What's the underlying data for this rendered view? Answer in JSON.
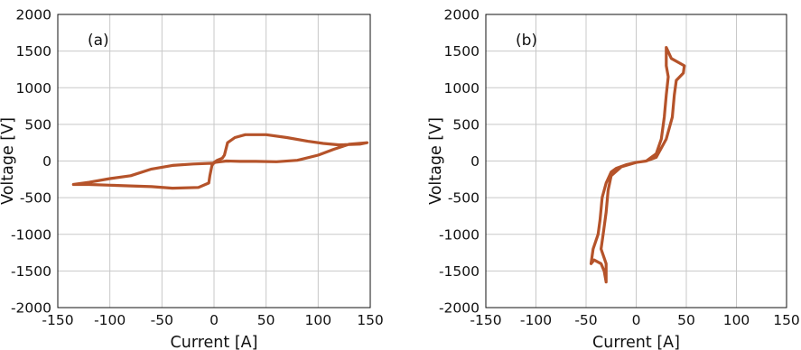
{
  "chart_data": [
    {
      "type": "line",
      "panel_label": "(a)",
      "xlabel": "Current [A]",
      "ylabel": "Voltage [V]",
      "xlim": [
        -150,
        150
      ],
      "ylim": [
        -2000,
        2000
      ],
      "xticks": [
        -150,
        -100,
        -50,
        0,
        50,
        100,
        150
      ],
      "yticks": [
        -2000,
        -1500,
        -1000,
        -500,
        0,
        500,
        1000,
        1500,
        2000
      ],
      "grid": true,
      "line_color": "#b5532a",
      "series": [
        {
          "points": [
            [
              0,
              -20
            ],
            [
              6,
              -10
            ],
            [
              12,
              0
            ],
            [
              25,
              -5
            ],
            [
              40,
              -5
            ],
            [
              60,
              -10
            ],
            [
              80,
              10
            ],
            [
              100,
              80
            ],
            [
              115,
              160
            ],
            [
              130,
              230
            ],
            [
              147,
              250
            ],
            [
              140,
              230
            ],
            [
              120,
              220
            ],
            [
              105,
              240
            ],
            [
              90,
              270
            ],
            [
              70,
              320
            ],
            [
              50,
              360
            ],
            [
              30,
              360
            ],
            [
              20,
              320
            ],
            [
              13,
              250
            ],
            [
              10,
              80
            ],
            [
              8,
              40
            ],
            [
              3,
              10
            ],
            [
              0,
              -20
            ],
            [
              -2,
              -60
            ],
            [
              -4,
              -200
            ],
            [
              -5,
              -300
            ],
            [
              -15,
              -360
            ],
            [
              -40,
              -370
            ],
            [
              -60,
              -350
            ],
            [
              -80,
              -340
            ],
            [
              -100,
              -330
            ],
            [
              -120,
              -320
            ],
            [
              -135,
              -320
            ],
            [
              -120,
              -290
            ],
            [
              -100,
              -240
            ],
            [
              -80,
              -200
            ],
            [
              -60,
              -110
            ],
            [
              -40,
              -60
            ],
            [
              -20,
              -40
            ],
            [
              0,
              -30
            ]
          ]
        }
      ]
    },
    {
      "type": "line",
      "panel_label": "(b)",
      "xlabel": "Current [A]",
      "ylabel": "Voltage [V]",
      "xlim": [
        -150,
        150
      ],
      "ylim": [
        -2000,
        2000
      ],
      "xticks": [
        -150,
        -100,
        -50,
        0,
        50,
        100,
        150
      ],
      "yticks": [
        -2000,
        -1500,
        -1000,
        -500,
        0,
        500,
        1000,
        1500,
        2000
      ],
      "grid": true,
      "line_color": "#b5532a",
      "series": [
        {
          "points": [
            [
              -30,
              -1650
            ],
            [
              -32,
              -1500
            ],
            [
              -35,
              -1400
            ],
            [
              -42,
              -1350
            ],
            [
              -45,
              -1400
            ],
            [
              -43,
              -1200
            ],
            [
              -38,
              -1000
            ],
            [
              -36,
              -800
            ],
            [
              -34,
              -500
            ],
            [
              -32,
              -400
            ],
            [
              -30,
              -300
            ],
            [
              -25,
              -150
            ],
            [
              -20,
              -100
            ],
            [
              -10,
              -50
            ],
            [
              0,
              -20
            ],
            [
              10,
              0
            ],
            [
              20,
              100
            ],
            [
              25,
              300
            ],
            [
              28,
              600
            ],
            [
              30,
              900
            ],
            [
              32,
              1150
            ],
            [
              30,
              1300
            ],
            [
              30,
              1550
            ],
            [
              35,
              1400
            ],
            [
              48,
              1300
            ],
            [
              47,
              1200
            ],
            [
              40,
              1100
            ],
            [
              38,
              900
            ],
            [
              36,
              600
            ],
            [
              30,
              300
            ],
            [
              20,
              50
            ],
            [
              10,
              0
            ],
            [
              0,
              -20
            ],
            [
              -15,
              -80
            ],
            [
              -25,
              -200
            ],
            [
              -28,
              -400
            ],
            [
              -30,
              -700
            ],
            [
              -33,
              -1000
            ],
            [
              -35,
              -1200
            ],
            [
              -30,
              -1400
            ],
            [
              -30,
              -1650
            ]
          ]
        }
      ]
    }
  ]
}
